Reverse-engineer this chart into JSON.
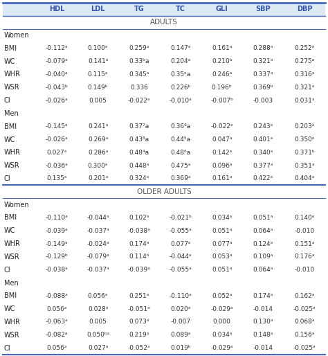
{
  "columns": [
    "HDL",
    "LDL",
    "TG",
    "TC",
    "GLI",
    "SBP",
    "DBP"
  ],
  "header_color": "#3355aa",
  "header_bg": "#dde8f5",
  "section_adults": "ADULTS",
  "section_older": "OLDER ADULTS",
  "adults_women_rows": [
    [
      "BMI",
      "-0.112ᵃ",
      "0.100ᵃ",
      "0.259ᵃ",
      "0.147ᵃ",
      "0.161ᵃ",
      "0.288ᵃ",
      "0.252ᵃ"
    ],
    [
      "WC",
      "-0.079ᵃ",
      "0.141ᵃ",
      "0.33ᵇa",
      "0.204ᵃ",
      "0.210ᵇ",
      "0.321ᵃ",
      "0.275ᵃ"
    ],
    [
      "WHR",
      "-0.040ᵃ",
      "0.115ᵃ",
      "0.345ᵃ",
      "0.35ᵒa",
      "0.246ᵃ",
      "0.337ᵃ",
      "0.316ᵃ"
    ],
    [
      "WSR",
      "-0.043ᵇ",
      "0.149ᵇ",
      "0.336",
      "0.226ᵇ",
      "0.196ᵇ",
      "0.369ᵇ",
      "0.321ᵃ"
    ],
    [
      "CI",
      "-0.026ᵃ",
      "0.005",
      "-0.022ᵃ",
      "-0.010ᵃ",
      "-0.007ᵇ",
      "-0.003",
      "0.031ᵃ"
    ]
  ],
  "adults_men_rows": [
    [
      "BMI",
      "-0.145ᵃ",
      "0.241ᵃ",
      "0.37⁷a",
      "0.36⁶a",
      "-0.022ᵃ",
      "0.243ᵃ",
      "0.203ᵃ"
    ],
    [
      "WC",
      "-0.026ᵃ",
      "0.269ᵃ",
      "0.43⁸a",
      "0.44⁵a",
      "0.047ᵃ",
      "0.401ᵃ",
      "0.350ᵒ"
    ],
    [
      "WHR",
      "0.027ᵃ",
      "0.286ᵃ",
      "0.48⁴a",
      "0.48⁶a",
      "0.142ᵃ",
      "0.340ᵃ",
      "0.371ᵇ"
    ],
    [
      "WSR",
      "-0.036ᵃ",
      "0.300ᵃ",
      "0.448ᵃ",
      "0.475ᵃ",
      "0.096ᵃ",
      "0.377ᵃ",
      "0.351ᵃ"
    ],
    [
      "CI",
      "0.135ᵃ",
      "0.201ᵃ",
      "0.324ᵃ",
      "0.369ᵃ",
      "0.161ᵃ",
      "0.422ᵃ",
      "0.404ᵃ"
    ]
  ],
  "older_women_rows": [
    [
      "BMI",
      "-0.110ᵃ",
      "-0.044ᵃ",
      "0.102ᵃ",
      "-0.021ᵇ",
      "0.034ᵃ",
      "0.051ᵃ",
      "0.140ᵃ"
    ],
    [
      "WC",
      "-0.039ᵃ",
      "-0.037ᵃ",
      "-0.038ᵃ",
      "-0.055ᵃ",
      "0.051ᵃ",
      "0.064ᵃ",
      "-0.010"
    ],
    [
      "WHR",
      "-0.149ᵃ",
      "-0.024ᵃ",
      "0.174ᵃ",
      "0.077ᵃ",
      "0.077ᵃ",
      "0.124ᵃ",
      "0.151ᵃ"
    ],
    [
      "WSR",
      "-0.129ᵇ",
      "-0.079ᵃ",
      "0.114ᵇ",
      "-0.044ᵃ",
      "0.053ᵃ",
      "0.109ᵃ",
      "0.176ᵃ"
    ],
    [
      "CI",
      "-0.038ᵃ",
      "-0.037ᵃ",
      "-0.039ᵃ",
      "-0.055ᵃ",
      "0.051ᵃ",
      "0.064ᵃ",
      "-0.010"
    ]
  ],
  "older_men_rows": [
    [
      "BMI",
      "-0.088ᵃ",
      "0.056ᵃ",
      "0.251ᵃ",
      "-0.110ᵃ",
      "0.052ᵃ",
      "0.174ᵃ",
      "0.162ᵃ"
    ],
    [
      "WC",
      "0.056ᵃ",
      "0.028ᵃ",
      "-0.051ᵃ",
      "0.020ᵃ",
      "-0.029ᵃ",
      "-0.014",
      "-0.025ᵃ"
    ],
    [
      "WHR",
      "-0.063ᵃ",
      "0.005",
      "0.073ᵃ",
      "-0.007",
      "0.000",
      "0.130ᵃ",
      "0.068ᵃ"
    ],
    [
      "WSR",
      "-0.082ᵃ",
      "0.050ᵇᵃ",
      "0.219ᵃ",
      "0.089ᵃ",
      "0.034ᵃ",
      "0.148ᵃ",
      "0.156ᵃ"
    ],
    [
      "CI",
      "0.056ᵃ",
      "0.027ᵃ",
      "-0.052ᵃ",
      "0.019ᵇ",
      "-0.029ᵃ",
      "-0.014",
      "-0.025ᵃ"
    ]
  ],
  "row_label_color": "#222222",
  "section_label_color": "#555555",
  "group_label_color": "#222222",
  "cell_text_color": "#333333",
  "border_color": "#4466bb",
  "bg_color": "#ffffff"
}
